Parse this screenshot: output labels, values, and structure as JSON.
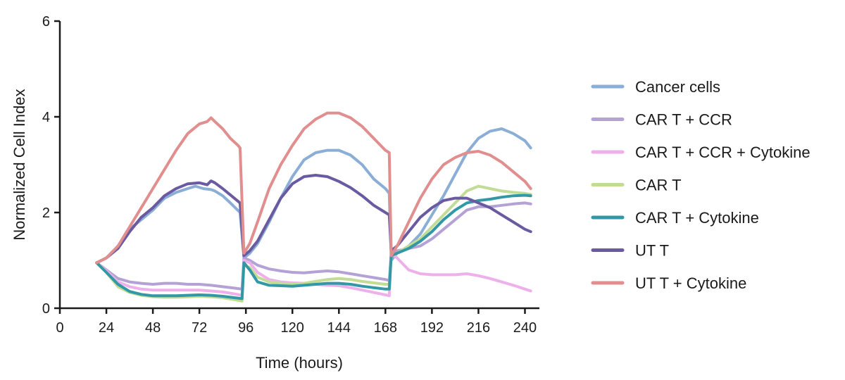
{
  "chart_data": {
    "type": "line",
    "title": "",
    "xlabel": "Time (hours)",
    "ylabel": "Normalized Cell Index",
    "xlim": [
      0,
      246
    ],
    "ylim": [
      0,
      6
    ],
    "xticks": [
      0,
      24,
      48,
      72,
      96,
      120,
      144,
      168,
      192,
      216,
      240
    ],
    "yticks": [
      0,
      2,
      4,
      6
    ],
    "grid": false,
    "legend_position": "right",
    "series": [
      {
        "name": "Cancer cells",
        "color": "#8aaed6",
        "points": [
          [
            19,
            0.95
          ],
          [
            24,
            1.05
          ],
          [
            30,
            1.3
          ],
          [
            36,
            1.65
          ],
          [
            42,
            1.85
          ],
          [
            48,
            2.05
          ],
          [
            54,
            2.3
          ],
          [
            60,
            2.42
          ],
          [
            66,
            2.5
          ],
          [
            70,
            2.55
          ],
          [
            74,
            2.5
          ],
          [
            78,
            2.48
          ],
          [
            80,
            2.45
          ],
          [
            84,
            2.35
          ],
          [
            88,
            2.2
          ],
          [
            93,
            2.0
          ],
          [
            95,
            1.05
          ],
          [
            98,
            1.15
          ],
          [
            102,
            1.35
          ],
          [
            108,
            1.8
          ],
          [
            114,
            2.3
          ],
          [
            120,
            2.75
          ],
          [
            126,
            3.1
          ],
          [
            132,
            3.25
          ],
          [
            138,
            3.3
          ],
          [
            144,
            3.3
          ],
          [
            150,
            3.2
          ],
          [
            156,
            3.0
          ],
          [
            162,
            2.7
          ],
          [
            168,
            2.5
          ],
          [
            170,
            2.4
          ],
          [
            171,
            1.0
          ],
          [
            174,
            1.15
          ],
          [
            180,
            1.3
          ],
          [
            186,
            1.55
          ],
          [
            192,
            1.95
          ],
          [
            198,
            2.35
          ],
          [
            204,
            2.8
          ],
          [
            210,
            3.25
          ],
          [
            216,
            3.55
          ],
          [
            222,
            3.7
          ],
          [
            228,
            3.75
          ],
          [
            234,
            3.65
          ],
          [
            240,
            3.5
          ],
          [
            243,
            3.35
          ]
        ]
      },
      {
        "name": "CAR T + CCR",
        "color": "#b4a2d6",
        "points": [
          [
            19,
            0.95
          ],
          [
            24,
            0.8
          ],
          [
            30,
            0.62
          ],
          [
            36,
            0.55
          ],
          [
            42,
            0.52
          ],
          [
            48,
            0.5
          ],
          [
            54,
            0.52
          ],
          [
            60,
            0.52
          ],
          [
            66,
            0.5
          ],
          [
            72,
            0.5
          ],
          [
            78,
            0.48
          ],
          [
            84,
            0.45
          ],
          [
            90,
            0.42
          ],
          [
            94,
            0.4
          ],
          [
            95,
            1.05
          ],
          [
            98,
            1.0
          ],
          [
            102,
            0.9
          ],
          [
            108,
            0.82
          ],
          [
            114,
            0.78
          ],
          [
            120,
            0.75
          ],
          [
            126,
            0.74
          ],
          [
            132,
            0.76
          ],
          [
            138,
            0.78
          ],
          [
            144,
            0.76
          ],
          [
            150,
            0.72
          ],
          [
            156,
            0.68
          ],
          [
            162,
            0.64
          ],
          [
            168,
            0.6
          ],
          [
            170,
            0.58
          ],
          [
            171,
            1.15
          ],
          [
            174,
            1.2
          ],
          [
            180,
            1.25
          ],
          [
            186,
            1.3
          ],
          [
            192,
            1.45
          ],
          [
            198,
            1.65
          ],
          [
            204,
            1.85
          ],
          [
            210,
            2.05
          ],
          [
            216,
            2.12
          ],
          [
            222,
            2.12
          ],
          [
            228,
            2.15
          ],
          [
            234,
            2.18
          ],
          [
            240,
            2.2
          ],
          [
            243,
            2.18
          ]
        ]
      },
      {
        "name": "CAR T + CCR + Cytokine",
        "color": "#eeb0ea",
        "points": [
          [
            19,
            0.95
          ],
          [
            24,
            0.78
          ],
          [
            30,
            0.55
          ],
          [
            36,
            0.45
          ],
          [
            42,
            0.4
          ],
          [
            48,
            0.38
          ],
          [
            54,
            0.38
          ],
          [
            60,
            0.38
          ],
          [
            66,
            0.38
          ],
          [
            72,
            0.38
          ],
          [
            78,
            0.36
          ],
          [
            84,
            0.34
          ],
          [
            90,
            0.3
          ],
          [
            94,
            0.27
          ],
          [
            95,
            1.0
          ],
          [
            98,
            0.95
          ],
          [
            102,
            0.75
          ],
          [
            108,
            0.6
          ],
          [
            114,
            0.55
          ],
          [
            120,
            0.53
          ],
          [
            126,
            0.52
          ],
          [
            132,
            0.5
          ],
          [
            138,
            0.48
          ],
          [
            144,
            0.47
          ],
          [
            150,
            0.43
          ],
          [
            156,
            0.38
          ],
          [
            162,
            0.33
          ],
          [
            168,
            0.28
          ],
          [
            170,
            0.26
          ],
          [
            171,
            1.15
          ],
          [
            174,
            1.05
          ],
          [
            180,
            0.8
          ],
          [
            186,
            0.72
          ],
          [
            192,
            0.7
          ],
          [
            198,
            0.7
          ],
          [
            204,
            0.7
          ],
          [
            210,
            0.72
          ],
          [
            216,
            0.68
          ],
          [
            222,
            0.62
          ],
          [
            228,
            0.55
          ],
          [
            234,
            0.48
          ],
          [
            240,
            0.4
          ],
          [
            243,
            0.36
          ]
        ]
      },
      {
        "name": "CAR T",
        "color": "#c2dc96",
        "points": [
          [
            19,
            0.95
          ],
          [
            24,
            0.75
          ],
          [
            30,
            0.45
          ],
          [
            36,
            0.33
          ],
          [
            42,
            0.27
          ],
          [
            48,
            0.24
          ],
          [
            54,
            0.23
          ],
          [
            60,
            0.23
          ],
          [
            66,
            0.24
          ],
          [
            72,
            0.25
          ],
          [
            78,
            0.24
          ],
          [
            84,
            0.22
          ],
          [
            90,
            0.18
          ],
          [
            94,
            0.15
          ],
          [
            95,
            0.9
          ],
          [
            98,
            0.85
          ],
          [
            102,
            0.65
          ],
          [
            108,
            0.55
          ],
          [
            114,
            0.52
          ],
          [
            120,
            0.5
          ],
          [
            126,
            0.52
          ],
          [
            132,
            0.56
          ],
          [
            138,
            0.6
          ],
          [
            144,
            0.62
          ],
          [
            150,
            0.6
          ],
          [
            156,
            0.56
          ],
          [
            162,
            0.53
          ],
          [
            168,
            0.5
          ],
          [
            170,
            0.5
          ],
          [
            171,
            1.1
          ],
          [
            174,
            1.15
          ],
          [
            180,
            1.3
          ],
          [
            186,
            1.45
          ],
          [
            192,
            1.7
          ],
          [
            198,
            1.95
          ],
          [
            204,
            2.2
          ],
          [
            210,
            2.45
          ],
          [
            216,
            2.55
          ],
          [
            222,
            2.5
          ],
          [
            228,
            2.45
          ],
          [
            234,
            2.42
          ],
          [
            240,
            2.4
          ],
          [
            243,
            2.38
          ]
        ]
      },
      {
        "name": "CAR T + Cytokine",
        "color": "#3298a6",
        "points": [
          [
            19,
            0.95
          ],
          [
            24,
            0.75
          ],
          [
            30,
            0.5
          ],
          [
            36,
            0.35
          ],
          [
            42,
            0.29
          ],
          [
            48,
            0.26
          ],
          [
            54,
            0.26
          ],
          [
            60,
            0.26
          ],
          [
            66,
            0.27
          ],
          [
            72,
            0.28
          ],
          [
            78,
            0.27
          ],
          [
            84,
            0.25
          ],
          [
            90,
            0.22
          ],
          [
            94,
            0.2
          ],
          [
            95,
            0.95
          ],
          [
            98,
            0.8
          ],
          [
            102,
            0.55
          ],
          [
            108,
            0.48
          ],
          [
            114,
            0.47
          ],
          [
            120,
            0.46
          ],
          [
            126,
            0.48
          ],
          [
            132,
            0.5
          ],
          [
            138,
            0.52
          ],
          [
            144,
            0.52
          ],
          [
            150,
            0.5
          ],
          [
            156,
            0.46
          ],
          [
            162,
            0.43
          ],
          [
            168,
            0.4
          ],
          [
            170,
            0.4
          ],
          [
            171,
            1.1
          ],
          [
            174,
            1.15
          ],
          [
            180,
            1.25
          ],
          [
            186,
            1.4
          ],
          [
            192,
            1.6
          ],
          [
            198,
            1.85
          ],
          [
            204,
            2.05
          ],
          [
            210,
            2.2
          ],
          [
            216,
            2.25
          ],
          [
            222,
            2.28
          ],
          [
            228,
            2.32
          ],
          [
            234,
            2.35
          ],
          [
            240,
            2.36
          ],
          [
            243,
            2.35
          ]
        ]
      },
      {
        "name": "UT T",
        "color": "#6a5aa2",
        "points": [
          [
            19,
            0.95
          ],
          [
            24,
            1.05
          ],
          [
            30,
            1.25
          ],
          [
            36,
            1.6
          ],
          [
            42,
            1.9
          ],
          [
            48,
            2.1
          ],
          [
            54,
            2.35
          ],
          [
            60,
            2.5
          ],
          [
            66,
            2.6
          ],
          [
            72,
            2.62
          ],
          [
            76,
            2.58
          ],
          [
            78,
            2.66
          ],
          [
            80,
            2.62
          ],
          [
            84,
            2.5
          ],
          [
            90,
            2.3
          ],
          [
            93,
            2.2
          ],
          [
            95,
            1.1
          ],
          [
            98,
            1.2
          ],
          [
            102,
            1.4
          ],
          [
            108,
            1.85
          ],
          [
            114,
            2.3
          ],
          [
            120,
            2.6
          ],
          [
            126,
            2.75
          ],
          [
            132,
            2.78
          ],
          [
            138,
            2.75
          ],
          [
            144,
            2.65
          ],
          [
            150,
            2.52
          ],
          [
            156,
            2.35
          ],
          [
            162,
            2.15
          ],
          [
            168,
            2.0
          ],
          [
            170,
            1.95
          ],
          [
            171,
            1.2
          ],
          [
            174,
            1.3
          ],
          [
            180,
            1.6
          ],
          [
            186,
            1.9
          ],
          [
            192,
            2.1
          ],
          [
            198,
            2.25
          ],
          [
            204,
            2.3
          ],
          [
            210,
            2.3
          ],
          [
            216,
            2.2
          ],
          [
            222,
            2.1
          ],
          [
            228,
            1.95
          ],
          [
            234,
            1.8
          ],
          [
            240,
            1.65
          ],
          [
            243,
            1.6
          ]
        ]
      },
      {
        "name": "UT T + Cytokine",
        "color": "#e08e8e",
        "points": [
          [
            19,
            0.95
          ],
          [
            24,
            1.05
          ],
          [
            30,
            1.3
          ],
          [
            36,
            1.7
          ],
          [
            42,
            2.1
          ],
          [
            48,
            2.5
          ],
          [
            54,
            2.9
          ],
          [
            60,
            3.3
          ],
          [
            66,
            3.65
          ],
          [
            72,
            3.85
          ],
          [
            76,
            3.9
          ],
          [
            78,
            3.98
          ],
          [
            80,
            3.9
          ],
          [
            84,
            3.75
          ],
          [
            88,
            3.55
          ],
          [
            92,
            3.4
          ],
          [
            93,
            3.35
          ],
          [
            95,
            1.15
          ],
          [
            98,
            1.35
          ],
          [
            102,
            1.8
          ],
          [
            108,
            2.5
          ],
          [
            114,
            3.0
          ],
          [
            120,
            3.4
          ],
          [
            126,
            3.75
          ],
          [
            132,
            3.95
          ],
          [
            138,
            4.08
          ],
          [
            144,
            4.08
          ],
          [
            150,
            3.98
          ],
          [
            156,
            3.8
          ],
          [
            162,
            3.55
          ],
          [
            168,
            3.3
          ],
          [
            170,
            3.25
          ],
          [
            171,
            1.1
          ],
          [
            174,
            1.3
          ],
          [
            180,
            1.8
          ],
          [
            186,
            2.3
          ],
          [
            192,
            2.7
          ],
          [
            198,
            3.0
          ],
          [
            204,
            3.15
          ],
          [
            210,
            3.25
          ],
          [
            216,
            3.28
          ],
          [
            222,
            3.2
          ],
          [
            228,
            3.05
          ],
          [
            234,
            2.85
          ],
          [
            240,
            2.65
          ],
          [
            243,
            2.5
          ]
        ]
      }
    ]
  }
}
